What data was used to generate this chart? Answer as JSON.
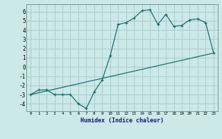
{
  "xlabel": "Humidex (Indice chaleur)",
  "bg_color": "#cce8e8",
  "grid_color": "#aacccc",
  "line_color": "#1a6e6e",
  "xlim": [
    -0.5,
    23.5
  ],
  "ylim": [
    -4.8,
    6.8
  ],
  "xticks": [
    0,
    1,
    2,
    3,
    4,
    5,
    6,
    7,
    8,
    9,
    10,
    11,
    12,
    13,
    14,
    15,
    16,
    17,
    18,
    19,
    20,
    21,
    22,
    23
  ],
  "yticks": [
    -4,
    -3,
    -2,
    -1,
    0,
    1,
    2,
    3,
    4,
    5,
    6
  ],
  "line1_x": [
    0,
    1,
    2,
    3,
    4,
    5,
    6,
    7,
    8,
    9,
    10,
    11,
    12,
    13,
    14,
    15,
    16,
    17,
    18,
    19,
    20,
    21,
    22,
    23
  ],
  "line1_y": [
    -3,
    -2.5,
    -2.5,
    -3,
    -3,
    -3,
    -4,
    -4.5,
    -2.7,
    -1.4,
    1.2,
    4.6,
    4.8,
    5.3,
    6.1,
    6.2,
    4.6,
    5.7,
    4.4,
    4.5,
    5.1,
    5.2,
    4.8,
    1.5
  ],
  "line2_x": [
    0,
    23
  ],
  "line2_y": [
    -3.0,
    1.5
  ],
  "marker": "+"
}
